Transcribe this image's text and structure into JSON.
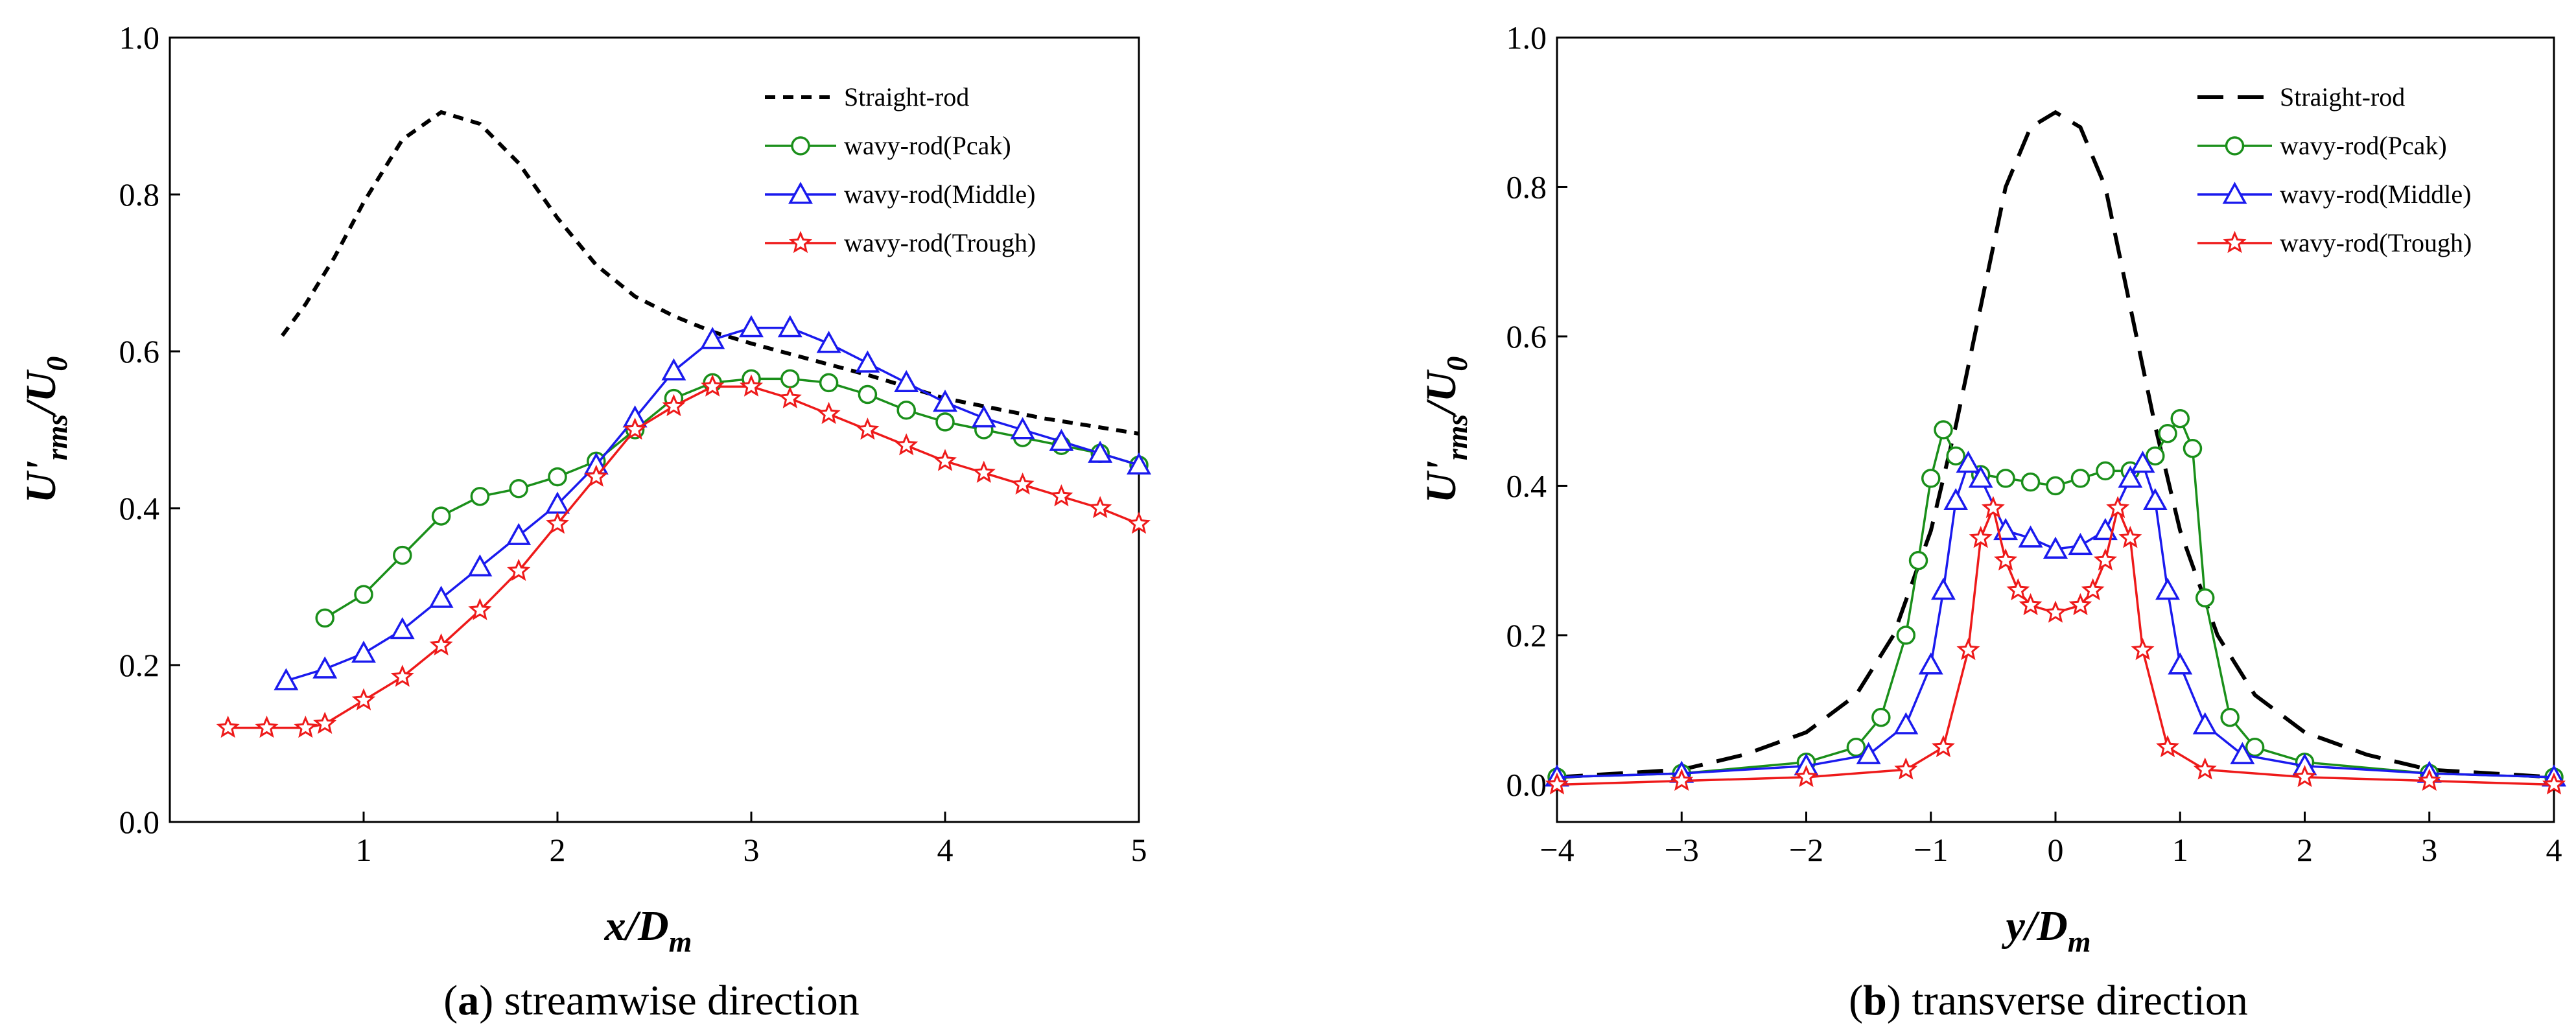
{
  "chart_data": [
    {
      "type": "line",
      "caption_letter": "a",
      "caption_text": " streamwise direction",
      "xlabel": {
        "main": "x/D",
        "sub": "m"
      },
      "ylabel": {
        "main": "U'",
        "sub": "rms",
        "tail": "/U",
        "tail_sub": "0"
      },
      "xlim": [
        0.0,
        5.0
      ],
      "ylim": [
        0.0,
        1.0
      ],
      "xticks": [
        "1",
        "2",
        "3",
        "4",
        "5"
      ],
      "xtick_values": [
        1,
        2,
        3,
        4,
        5
      ],
      "yticks": [
        "0.0",
        "0.2",
        "0.4",
        "0.6",
        "0.8",
        "1.0"
      ],
      "ytick_values": [
        0.0,
        0.2,
        0.4,
        0.6,
        0.8,
        1.0
      ],
      "legend_position": "top-right",
      "series": [
        {
          "name": "Straight-rod",
          "color": "#000000",
          "style": "short-dash",
          "marker": "none",
          "x": [
            0.58,
            0.7,
            0.85,
            1.0,
            1.2,
            1.4,
            1.6,
            1.8,
            2.0,
            2.2,
            2.4,
            2.6,
            2.8,
            3.0,
            3.3,
            3.6,
            4.0,
            4.5,
            5.0
          ],
          "y": [
            0.62,
            0.66,
            0.72,
            0.79,
            0.87,
            0.905,
            0.89,
            0.84,
            0.77,
            0.71,
            0.67,
            0.645,
            0.625,
            0.61,
            0.59,
            0.57,
            0.54,
            0.515,
            0.495
          ]
        },
        {
          "name": "wavy-rod(Pcak)",
          "color": "#1a8f1a",
          "style": "solid",
          "marker": "circle",
          "x": [
            0.8,
            1.0,
            1.2,
            1.4,
            1.6,
            1.8,
            2.0,
            2.2,
            2.4,
            2.6,
            2.8,
            3.0,
            3.2,
            3.4,
            3.6,
            3.8,
            4.0,
            4.2,
            4.4,
            4.6,
            4.8,
            5.0
          ],
          "y": [
            0.26,
            0.29,
            0.34,
            0.39,
            0.415,
            0.425,
            0.44,
            0.46,
            0.5,
            0.54,
            0.56,
            0.565,
            0.565,
            0.56,
            0.545,
            0.525,
            0.51,
            0.5,
            0.49,
            0.48,
            0.47,
            0.455
          ]
        },
        {
          "name": "wavy-rod(Middle)",
          "color": "#1a1aee",
          "style": "solid",
          "marker": "triangle",
          "x": [
            0.6,
            0.8,
            1.0,
            1.2,
            1.4,
            1.6,
            1.8,
            2.0,
            2.2,
            2.4,
            2.6,
            2.8,
            3.0,
            3.2,
            3.4,
            3.6,
            3.8,
            4.0,
            4.2,
            4.4,
            4.6,
            4.8,
            5.0
          ],
          "y": [
            0.18,
            0.195,
            0.215,
            0.245,
            0.285,
            0.325,
            0.365,
            0.405,
            0.455,
            0.515,
            0.575,
            0.615,
            0.63,
            0.63,
            0.61,
            0.585,
            0.56,
            0.535,
            0.515,
            0.5,
            0.485,
            0.47,
            0.455
          ]
        },
        {
          "name": "wavy-rod(Trough)",
          "color": "#ee1a1a",
          "style": "solid",
          "marker": "star",
          "x": [
            0.3,
            0.5,
            0.7,
            0.8,
            1.0,
            1.2,
            1.4,
            1.6,
            1.8,
            2.0,
            2.2,
            2.4,
            2.6,
            2.8,
            3.0,
            3.2,
            3.4,
            3.6,
            3.8,
            4.0,
            4.2,
            4.4,
            4.6,
            4.8,
            5.0
          ],
          "y": [
            0.12,
            0.12,
            0.12,
            0.125,
            0.155,
            0.185,
            0.225,
            0.27,
            0.32,
            0.38,
            0.44,
            0.5,
            0.53,
            0.555,
            0.555,
            0.54,
            0.52,
            0.5,
            0.48,
            0.46,
            0.445,
            0.43,
            0.415,
            0.4,
            0.38
          ]
        }
      ]
    },
    {
      "type": "line",
      "caption_letter": "b",
      "caption_text": " transverse direction",
      "xlabel": {
        "main": "y/D",
        "sub": "m"
      },
      "ylabel": {
        "main": "U'",
        "sub": "rms",
        "tail": "/U",
        "tail_sub": "0"
      },
      "xlim": [
        -4.0,
        4.0
      ],
      "ylim": [
        -0.05,
        1.0
      ],
      "xticks": [
        "−4",
        "−3",
        "−2",
        "−1",
        "0",
        "1",
        "2",
        "3",
        "4"
      ],
      "xtick_values": [
        -4,
        -3,
        -2,
        -1,
        0,
        1,
        2,
        3,
        4
      ],
      "yticks": [
        "0.0",
        "0.2",
        "0.4",
        "0.6",
        "0.8",
        "1.0"
      ],
      "ytick_values": [
        0.0,
        0.2,
        0.4,
        0.6,
        0.8,
        1.0
      ],
      "legend_position": "top-right",
      "series": [
        {
          "name": "Straight-rod",
          "color": "#000000",
          "style": "long-dash",
          "marker": "none",
          "x": [
            -4.0,
            -3.0,
            -2.5,
            -2.0,
            -1.6,
            -1.3,
            -1.0,
            -0.8,
            -0.6,
            -0.4,
            -0.2,
            0.0,
            0.2,
            0.4,
            0.6,
            0.8,
            1.0,
            1.3,
            1.6,
            2.0,
            2.5,
            3.0,
            4.0
          ],
          "y": [
            0.01,
            0.02,
            0.04,
            0.07,
            0.12,
            0.2,
            0.34,
            0.48,
            0.64,
            0.8,
            0.88,
            0.9,
            0.88,
            0.8,
            0.64,
            0.48,
            0.34,
            0.2,
            0.12,
            0.07,
            0.04,
            0.02,
            0.01
          ]
        },
        {
          "name": "wavy-rod(Pcak)",
          "color": "#1a8f1a",
          "style": "solid",
          "marker": "circle",
          "x": [
            -4.0,
            -3.0,
            -2.0,
            -1.6,
            -1.4,
            -1.2,
            -1.1,
            -1.0,
            -0.9,
            -0.8,
            -0.6,
            -0.4,
            -0.2,
            0.0,
            0.2,
            0.4,
            0.6,
            0.8,
            0.9,
            1.0,
            1.1,
            1.2,
            1.4,
            1.6,
            2.0,
            3.0,
            4.0
          ],
          "y": [
            0.01,
            0.015,
            0.03,
            0.05,
            0.09,
            0.2,
            0.3,
            0.41,
            0.475,
            0.44,
            0.415,
            0.41,
            0.405,
            0.4,
            0.41,
            0.42,
            0.42,
            0.44,
            0.47,
            0.49,
            0.45,
            0.25,
            0.09,
            0.05,
            0.03,
            0.015,
            0.01
          ]
        },
        {
          "name": "wavy-rod(Middle)",
          "color": "#1a1aee",
          "style": "solid",
          "marker": "triangle",
          "x": [
            -4.0,
            -3.0,
            -2.0,
            -1.5,
            -1.2,
            -1.0,
            -0.9,
            -0.8,
            -0.7,
            -0.6,
            -0.4,
            -0.2,
            0.0,
            0.2,
            0.4,
            0.6,
            0.7,
            0.8,
            0.9,
            1.0,
            1.2,
            1.5,
            2.0,
            3.0,
            4.0
          ],
          "y": [
            0.01,
            0.015,
            0.025,
            0.04,
            0.08,
            0.16,
            0.26,
            0.38,
            0.43,
            0.41,
            0.34,
            0.33,
            0.315,
            0.32,
            0.34,
            0.41,
            0.43,
            0.38,
            0.26,
            0.16,
            0.08,
            0.04,
            0.025,
            0.015,
            0.01
          ]
        },
        {
          "name": "wavy-rod(Trough)",
          "color": "#ee1a1a",
          "style": "solid",
          "marker": "star",
          "x": [
            -4.0,
            -3.0,
            -2.0,
            -1.2,
            -0.9,
            -0.7,
            -0.6,
            -0.5,
            -0.4,
            -0.3,
            -0.2,
            0.0,
            0.2,
            0.3,
            0.4,
            0.5,
            0.6,
            0.7,
            0.9,
            1.2,
            2.0,
            3.0,
            4.0
          ],
          "y": [
            0.0,
            0.005,
            0.01,
            0.02,
            0.05,
            0.18,
            0.33,
            0.37,
            0.3,
            0.26,
            0.24,
            0.23,
            0.24,
            0.26,
            0.3,
            0.37,
            0.33,
            0.18,
            0.05,
            0.02,
            0.01,
            0.005,
            0.0
          ]
        }
      ]
    }
  ]
}
